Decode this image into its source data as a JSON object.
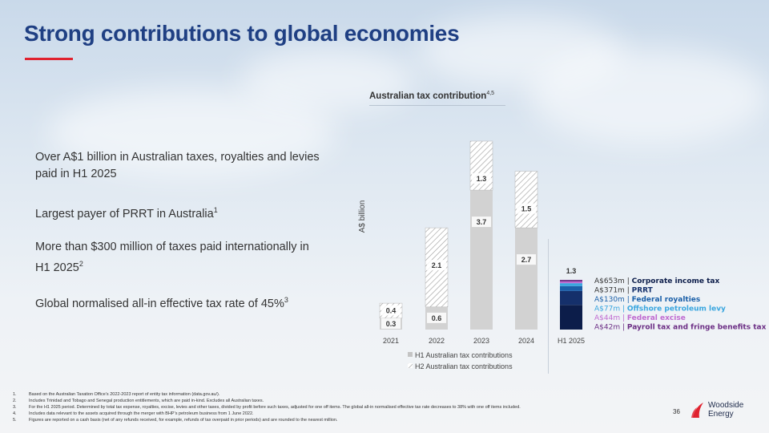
{
  "slide": {
    "title": "Strong contributions to global economies",
    "page_number": "36",
    "accent_color": "#e0222f",
    "title_color": "#1f3f83"
  },
  "bullets": [
    {
      "text": "Over A$1 billion in Australian taxes, royalties and levies paid in H1 2025",
      "sup": ""
    },
    {
      "text": "Largest payer of PRRT in Australia",
      "sup": "1"
    },
    {
      "text": "More than $300 million of taxes paid internationally in H1 2025",
      "sup": "2"
    },
    {
      "text": "Global normalised all-in effective tax rate of 45%",
      "sup": "3"
    }
  ],
  "chart_data": {
    "type": "bar",
    "stacked": true,
    "title": "Australian tax contribution",
    "title_sup": "4,5",
    "ylabel": "A$ billion",
    "xlabel": "",
    "ylim": [
      0,
      5.3
    ],
    "categories": [
      "2021",
      "2022",
      "2023",
      "2024",
      "H1 2025"
    ],
    "series": [
      {
        "name": "H1 Australian tax contributions",
        "values": [
          0.3,
          0.6,
          3.7,
          2.7,
          null
        ],
        "labels": [
          "0.3",
          "0.6",
          "3.7",
          "2.7",
          ""
        ]
      },
      {
        "name": "H2 Australian tax contributions",
        "values": [
          0.4,
          2.1,
          1.3,
          1.5,
          null
        ],
        "labels": [
          "0.4",
          "2.1",
          "1.3",
          "1.5",
          ""
        ]
      }
    ],
    "h1_2025_total_label": "1.3",
    "h1_2025_breakdown": [
      {
        "amount": "A$653m",
        "name": "Corporate income tax",
        "value": 0.653,
        "color": "#0c1d4a"
      },
      {
        "amount": "A$371m",
        "name": "PRRT",
        "value": 0.371,
        "color": "#15306b"
      },
      {
        "amount": "A$130m",
        "name": "Federal royalties",
        "value": 0.13,
        "color": "#1a5fa8"
      },
      {
        "amount": "A$77m",
        "name": "Offshore petroleum levy",
        "value": 0.077,
        "color": "#3aa6df"
      },
      {
        "amount": "A$44m",
        "name": "Federal excise",
        "value": 0.044,
        "color": "#c06bd1"
      },
      {
        "amount": "A$42m",
        "name": "Payroll tax and fringe benefits tax",
        "value": 0.042,
        "color": "#6b2d84"
      }
    ],
    "legend": [
      "H1 Australian tax contributions",
      "H2 Australian tax contributions"
    ],
    "legend_position": "bottom"
  },
  "footnotes": [
    {
      "num": "1.",
      "text": "Based on the Australian Taxation Office’s 2022-2023 report of entity tax information (data.gov.au/)."
    },
    {
      "num": "2.",
      "text": "Includes Trinidad and Tobago and Senegal production entitlements, which are paid in-kind. Excludes all Australian taxes."
    },
    {
      "num": "3.",
      "text": "For the H1 2025 period. Determined by total tax expense, royalties, excise, levies and other taxes, divided by profit before such taxes, adjusted for one off items. The global all-in normalised effective tax rate decreases to 38% with one off items included."
    },
    {
      "num": "4.",
      "text": "Includes data relevant to the assets acquired through the merger with BHP’s petroleum business from 1 June 2022."
    },
    {
      "num": "5.",
      "text": "Figures are reported on a cash basis (net of any refunds received, for example, refunds of tax overpaid in prior periods) and are rounded to the nearest million."
    }
  ],
  "logo": {
    "line1": "Woodside",
    "line2": "Energy"
  }
}
